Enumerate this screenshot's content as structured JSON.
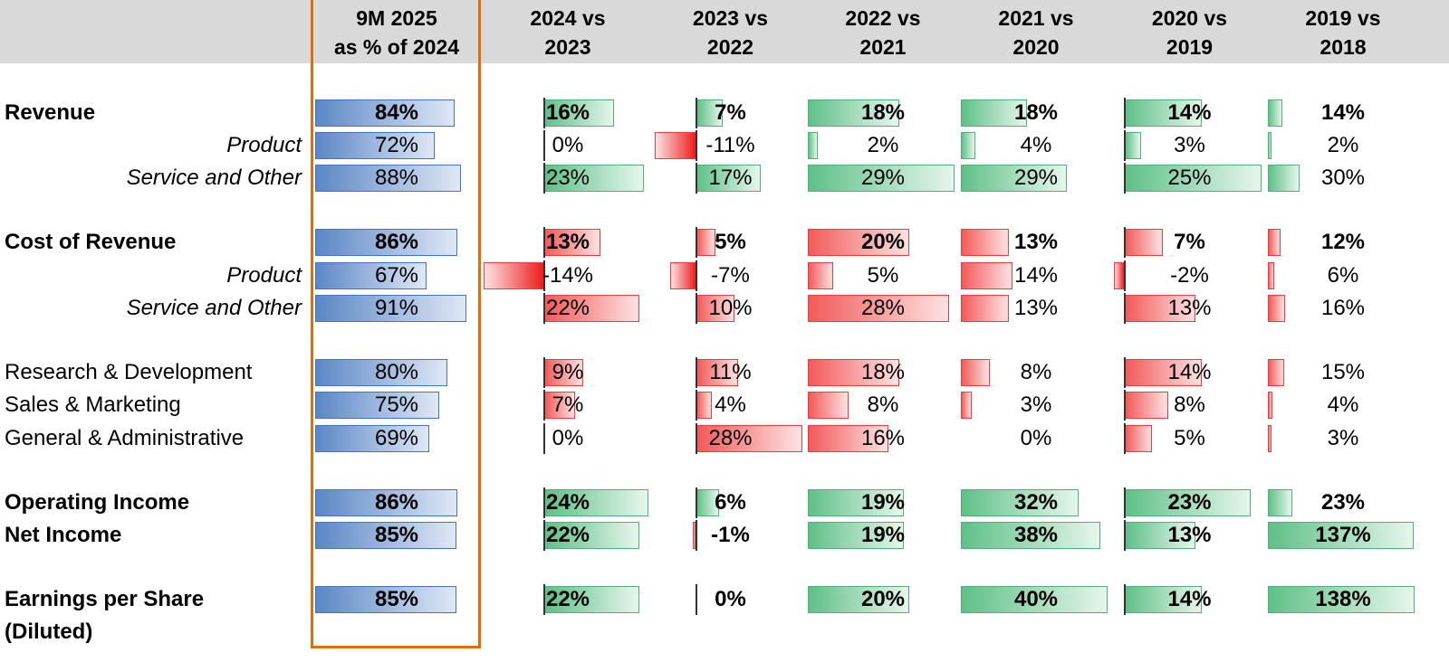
{
  "colors": {
    "header_bg": "#d9d9d9",
    "highlight_border": "#e26b0a",
    "blue_bar": "#4472c4",
    "green_bar": "#4fb07a",
    "red_bar": "#ee3b3b"
  },
  "chart_data": {
    "type": "table",
    "columns": [
      {
        "line1": "9M 2025",
        "line2": "as % of 2024",
        "kind": "ratio"
      },
      {
        "line1": "2024 vs",
        "line2": "2023",
        "kind": "growth"
      },
      {
        "line1": "2023 vs",
        "line2": "2022",
        "kind": "growth"
      },
      {
        "line1": "2022 vs",
        "line2": "2021",
        "kind": "growth"
      },
      {
        "line1": "2021 vs",
        "line2": "2020",
        "kind": "growth"
      },
      {
        "line1": "2020 vs",
        "line2": "2019",
        "kind": "growth"
      },
      {
        "line1": "2019 vs",
        "line2": "2018",
        "kind": "growth"
      }
    ],
    "rows": [
      {
        "label": "Revenue",
        "style": "bold",
        "group": "revenue",
        "metric": "revenue",
        "values": [
          84,
          16,
          7,
          18,
          18,
          14,
          14
        ]
      },
      {
        "label": "Product",
        "style": "italic",
        "group": "revenue",
        "metric": "revenue",
        "values": [
          72,
          0,
          -11,
          2,
          4,
          3,
          2
        ]
      },
      {
        "label": "Service and Other",
        "style": "italic",
        "group": "revenue",
        "metric": "revenue",
        "values": [
          88,
          23,
          17,
          29,
          29,
          25,
          30
        ]
      },
      {
        "label": "Cost of Revenue",
        "style": "bold",
        "group": "cost",
        "metric": "cost",
        "values": [
          86,
          13,
          5,
          20,
          13,
          7,
          12
        ]
      },
      {
        "label": "Product",
        "style": "italic",
        "group": "cost",
        "metric": "cost",
        "values": [
          67,
          -14,
          -7,
          5,
          14,
          -2,
          6
        ]
      },
      {
        "label": "Service and Other",
        "style": "italic",
        "group": "cost",
        "metric": "cost",
        "values": [
          91,
          22,
          10,
          28,
          13,
          13,
          16
        ]
      },
      {
        "label": "Research & Development",
        "style": "normal",
        "group": "opex",
        "metric": "cost",
        "values": [
          80,
          9,
          11,
          18,
          8,
          14,
          15
        ]
      },
      {
        "label": "Sales & Marketing",
        "style": "normal",
        "group": "opex",
        "metric": "cost",
        "values": [
          75,
          7,
          4,
          8,
          3,
          8,
          4
        ]
      },
      {
        "label": "General & Administrative",
        "style": "normal",
        "group": "opex",
        "metric": "cost",
        "values": [
          69,
          0,
          28,
          16,
          0,
          5,
          3
        ]
      },
      {
        "label": "Operating Income",
        "style": "bold",
        "group": "income",
        "metric": "revenue",
        "values": [
          86,
          24,
          6,
          19,
          32,
          23,
          23
        ]
      },
      {
        "label": "Net Income",
        "style": "bold",
        "group": "income",
        "metric": "revenue",
        "values": [
          85,
          22,
          -1,
          19,
          38,
          13,
          137
        ]
      },
      {
        "label": "Earnings per Share",
        "label2": "(Diluted)",
        "style": "bold",
        "group": "eps",
        "metric": "revenue",
        "values": [
          85,
          22,
          0,
          20,
          40,
          14,
          138
        ]
      }
    ],
    "value_suffix": "%"
  }
}
